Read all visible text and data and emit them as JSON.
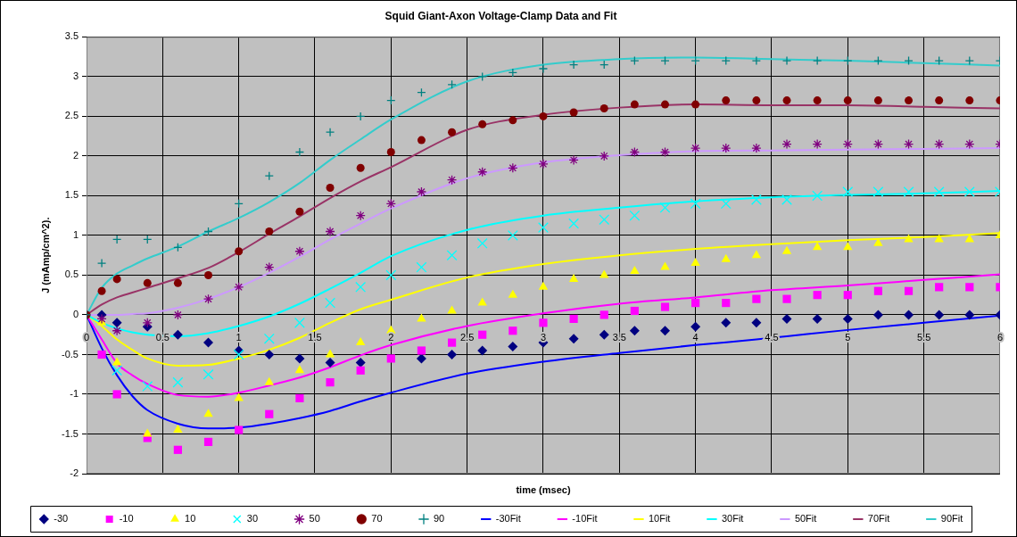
{
  "chart_data": {
    "type": "scatter",
    "title": "Squid Giant-Axon Voltage-Clamp Data and Fit",
    "xlabel": "time (msec)",
    "ylabel": "J (mAmp/cm^2).",
    "x": [
      0,
      0.1,
      0.2,
      0.4,
      0.6,
      0.8,
      1,
      1.2,
      1.4,
      1.6,
      1.8,
      2,
      2.2,
      2.4,
      2.6,
      2.8,
      3,
      3.2,
      3.4,
      3.6,
      3.8,
      4,
      4.2,
      4.4,
      4.6,
      4.8,
      5,
      5.2,
      5.4,
      5.6,
      5.8,
      6
    ],
    "xlim": [
      0,
      6
    ],
    "xticks": [
      0,
      0.5,
      1,
      1.5,
      2,
      2.5,
      3,
      3.5,
      4,
      4.5,
      5,
      5.5,
      6
    ],
    "ylim": [
      -2,
      3.5
    ],
    "yticks": [
      -2,
      -1.5,
      -1,
      -0.5,
      0,
      0.5,
      1,
      1.5,
      2,
      2.5,
      3,
      3.5
    ],
    "grid": true,
    "legend": "bottom",
    "series": [
      {
        "name": "-30",
        "color": "#000080",
        "marker": "diamond",
        "values": [
          null,
          0,
          -0.1,
          -0.15,
          -0.25,
          -0.35,
          -0.45,
          -0.5,
          -0.55,
          -0.6,
          -0.6,
          null,
          -0.55,
          -0.5,
          -0.45,
          -0.4,
          -0.35,
          -0.3,
          -0.25,
          -0.2,
          -0.2,
          -0.15,
          -0.1,
          -0.1,
          -0.05,
          -0.05,
          -0.05,
          0,
          0,
          0,
          0,
          0
        ]
      },
      {
        "name": "-10",
        "color": "#ff00ff",
        "marker": "square",
        "values": [
          null,
          -0.5,
          -1,
          -1.55,
          -1.7,
          -1.6,
          -1.45,
          -1.25,
          -1.05,
          -0.85,
          -0.7,
          -0.55,
          -0.45,
          -0.35,
          -0.25,
          -0.2,
          -0.1,
          -0.05,
          0,
          0.05,
          0.1,
          0.15,
          0.15,
          0.2,
          0.2,
          0.25,
          0.25,
          0.3,
          0.3,
          0.35,
          0.35,
          0.35
        ]
      },
      {
        "name": "10",
        "color": "#ffff00",
        "marker": "triangle",
        "values": [
          null,
          -0.1,
          -0.6,
          -1.5,
          -1.45,
          -1.25,
          -1.05,
          -0.85,
          -0.7,
          -0.5,
          -0.35,
          -0.2,
          -0.05,
          0.05,
          0.15,
          0.25,
          0.35,
          0.45,
          0.5,
          0.55,
          0.6,
          0.65,
          0.7,
          0.75,
          0.8,
          0.85,
          0.85,
          0.9,
          0.95,
          0.95,
          0.95,
          1
        ]
      },
      {
        "name": "30",
        "color": "#00ffff",
        "marker": "x",
        "values": [
          null,
          null,
          -0.7,
          -0.9,
          -0.85,
          -0.75,
          -0.5,
          -0.3,
          -0.1,
          0.15,
          0.35,
          0.5,
          0.6,
          0.75,
          0.9,
          1,
          1.1,
          1.15,
          1.2,
          1.25,
          1.35,
          1.4,
          1.4,
          1.45,
          1.45,
          1.5,
          1.55,
          1.55,
          1.55,
          1.55,
          1.55,
          1.55
        ]
      },
      {
        "name": "50",
        "color": "#800080",
        "values": [
          null,
          -0.05,
          -0.2,
          -0.1,
          0,
          0.2,
          0.35,
          0.6,
          0.8,
          1.05,
          1.25,
          1.4,
          1.55,
          1.7,
          1.8,
          1.85,
          1.9,
          1.95,
          2,
          2.05,
          2.05,
          2.1,
          2.1,
          2.1,
          2.15,
          2.15,
          2.15,
          2.15,
          2.15,
          2.15,
          2.15,
          2.15
        ]
      },
      {
        "name": "70",
        "color": "#800000",
        "marker": "circle",
        "values": [
          0,
          0.3,
          0.45,
          0.4,
          0.4,
          0.5,
          0.8,
          1.05,
          1.3,
          1.6,
          1.85,
          2.05,
          2.2,
          2.3,
          2.4,
          2.45,
          2.5,
          2.55,
          2.6,
          2.65,
          2.65,
          2.65,
          2.7,
          2.7,
          2.7,
          2.7,
          2.7,
          2.7,
          2.7,
          2.7,
          2.7,
          2.7
        ]
      },
      {
        "name": "90",
        "color": "#008080",
        "marker": "cross",
        "values": [
          0,
          0.65,
          0.95,
          0.95,
          0.85,
          1.05,
          1.4,
          1.75,
          2.05,
          2.3,
          2.5,
          2.7,
          2.8,
          2.9,
          3,
          3.05,
          3.1,
          3.15,
          3.15,
          3.2,
          3.2,
          3.2,
          3.2,
          3.2,
          3.2,
          3.2,
          3.2,
          3.2,
          3.2,
          3.2,
          3.2,
          3.2
        ]
      },
      {
        "name": "-30Fit",
        "type": "line",
        "color": "#0000ff",
        "x": [
          0,
          0.1,
          0.2,
          0.3,
          0.4,
          0.6,
          0.8,
          1,
          1.2,
          1.4,
          1.6,
          1.8,
          2,
          2.5,
          3,
          3.5,
          4,
          4.4,
          4.6,
          5,
          5.5,
          6
        ],
        "values": [
          0,
          -0.42,
          -0.76,
          -1.02,
          -1.2,
          -1.37,
          -1.43,
          -1.42,
          -1.37,
          -1.3,
          -1.21,
          -1.09,
          -0.98,
          -0.74,
          -0.59,
          -0.48,
          -0.38,
          -0.31,
          -0.27,
          -0.19,
          -0.1,
          -0.01
        ]
      },
      {
        "name": "-10Fit",
        "type": "line",
        "color": "#ff00ff",
        "x": [
          0,
          0.1,
          0.2,
          0.3,
          0.4,
          0.6,
          0.8,
          1,
          1.2,
          1.4,
          1.6,
          1.8,
          2,
          2.5,
          3,
          3.5,
          4,
          4.5,
          5,
          5.5,
          6
        ],
        "values": [
          0,
          -0.31,
          -0.61,
          -0.76,
          -0.87,
          -1.01,
          -1.03,
          -0.98,
          -0.89,
          -0.79,
          -0.66,
          -0.51,
          -0.38,
          -0.14,
          0.02,
          0.14,
          0.22,
          0.31,
          0.37,
          0.44,
          0.51
        ]
      },
      {
        "name": "10Fit",
        "type": "line",
        "color": "#ffff00",
        "x": [
          0,
          0.1,
          0.2,
          0.3,
          0.4,
          0.6,
          0.8,
          1,
          1.2,
          1.4,
          1.6,
          1.8,
          2,
          2.5,
          3,
          3.5,
          4,
          4.5,
          5,
          5.5,
          6
        ],
        "values": [
          0,
          -0.14,
          -0.31,
          -0.44,
          -0.55,
          -0.64,
          -0.63,
          -0.55,
          -0.44,
          -0.29,
          -0.1,
          0.07,
          0.19,
          0.47,
          0.64,
          0.75,
          0.83,
          0.89,
          0.94,
          0.98,
          1.03
        ]
      },
      {
        "name": "30Fit",
        "type": "line",
        "color": "#00ffff",
        "x": [
          0,
          0.1,
          0.2,
          0.3,
          0.4,
          0.6,
          0.8,
          1,
          1.2,
          1.4,
          1.6,
          1.8,
          2,
          2.5,
          3,
          3.5,
          4,
          4.5,
          5,
          5.5,
          6
        ],
        "values": [
          0,
          -0.1,
          -0.17,
          -0.22,
          -0.25,
          -0.27,
          -0.23,
          -0.14,
          -0.02,
          0.14,
          0.33,
          0.53,
          0.74,
          1.07,
          1.25,
          1.35,
          1.43,
          1.48,
          1.51,
          1.53,
          1.56
        ]
      },
      {
        "name": "50Fit",
        "type": "line",
        "color": "#cc99ff",
        "x": [
          0,
          0.1,
          0.2,
          0.3,
          0.4,
          0.6,
          0.8,
          1,
          1.2,
          1.4,
          1.6,
          1.8,
          2,
          2.5,
          3,
          3.5,
          4,
          4.5,
          5,
          5.5,
          6
        ],
        "values": [
          0,
          0,
          0,
          0.01,
          0.02,
          0.09,
          0.2,
          0.35,
          0.53,
          0.73,
          0.95,
          1.15,
          1.34,
          1.72,
          1.92,
          2.01,
          2.06,
          2.07,
          2.08,
          2.09,
          2.1
        ]
      },
      {
        "name": "70Fit",
        "type": "line",
        "color": "#993366",
        "x": [
          0,
          0.1,
          0.2,
          0.3,
          0.4,
          0.6,
          0.8,
          1,
          1.2,
          1.4,
          1.6,
          1.8,
          2,
          2.5,
          3,
          3.5,
          4,
          4.5,
          5,
          5.5,
          6
        ],
        "values": [
          0,
          0.13,
          0.22,
          0.28,
          0.34,
          0.46,
          0.59,
          0.79,
          1.02,
          1.24,
          1.47,
          1.68,
          1.86,
          2.33,
          2.52,
          2.61,
          2.65,
          2.64,
          2.64,
          2.62,
          2.6
        ]
      },
      {
        "name": "90Fit",
        "type": "line",
        "color": "#33cccc",
        "x": [
          0,
          0.1,
          0.2,
          0.3,
          0.4,
          0.6,
          0.8,
          1,
          1.2,
          1.4,
          1.6,
          1.8,
          2,
          2.5,
          3,
          3.5,
          4,
          4.5,
          5,
          5.5,
          6
        ],
        "values": [
          0,
          0.34,
          0.52,
          0.62,
          0.71,
          0.86,
          1.05,
          1.22,
          1.42,
          1.66,
          1.95,
          2.21,
          2.46,
          2.94,
          3.15,
          3.22,
          3.24,
          3.22,
          3.2,
          3.17,
          3.14
        ]
      }
    ]
  }
}
